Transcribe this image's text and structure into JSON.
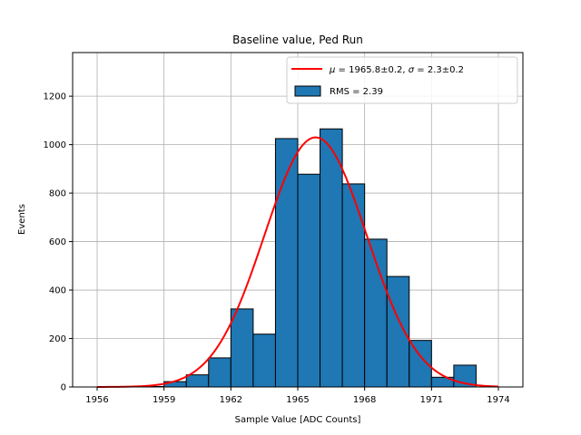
{
  "chart_data": {
    "type": "bar",
    "title": "Baseline value, Ped Run",
    "xlabel": "Sample Value [ADC Counts]",
    "ylabel": "Events",
    "xlim": [
      1954.9,
      1975.1
    ],
    "ylim": [
      0,
      1380
    ],
    "xticks": [
      1956,
      1959,
      1962,
      1965,
      1968,
      1971,
      1974
    ],
    "yticks": [
      0,
      200,
      400,
      600,
      800,
      1000,
      1200
    ],
    "grid": true,
    "legend_position": "top-right",
    "histogram": {
      "name": "RMS = 2.39",
      "color": "#1f77b4",
      "edge_color": "#000000",
      "bin_edges": [
        1958,
        1959,
        1960,
        1961,
        1962,
        1963,
        1964,
        1965,
        1966,
        1967,
        1968,
        1969,
        1970,
        1971,
        1972,
        1973
      ],
      "counts": [
        2,
        22,
        50,
        120,
        322,
        218,
        1025,
        878,
        1065,
        838,
        610,
        456,
        192,
        40,
        90
      ]
    },
    "fit": {
      "name_prefix": "μ = 1965.8±0.2, σ = 2.3±0.2",
      "color": "#ff0000",
      "mu": 1965.8,
      "sigma": 2.3,
      "amplitude": 1030,
      "x_range": [
        1956,
        1974
      ]
    }
  }
}
